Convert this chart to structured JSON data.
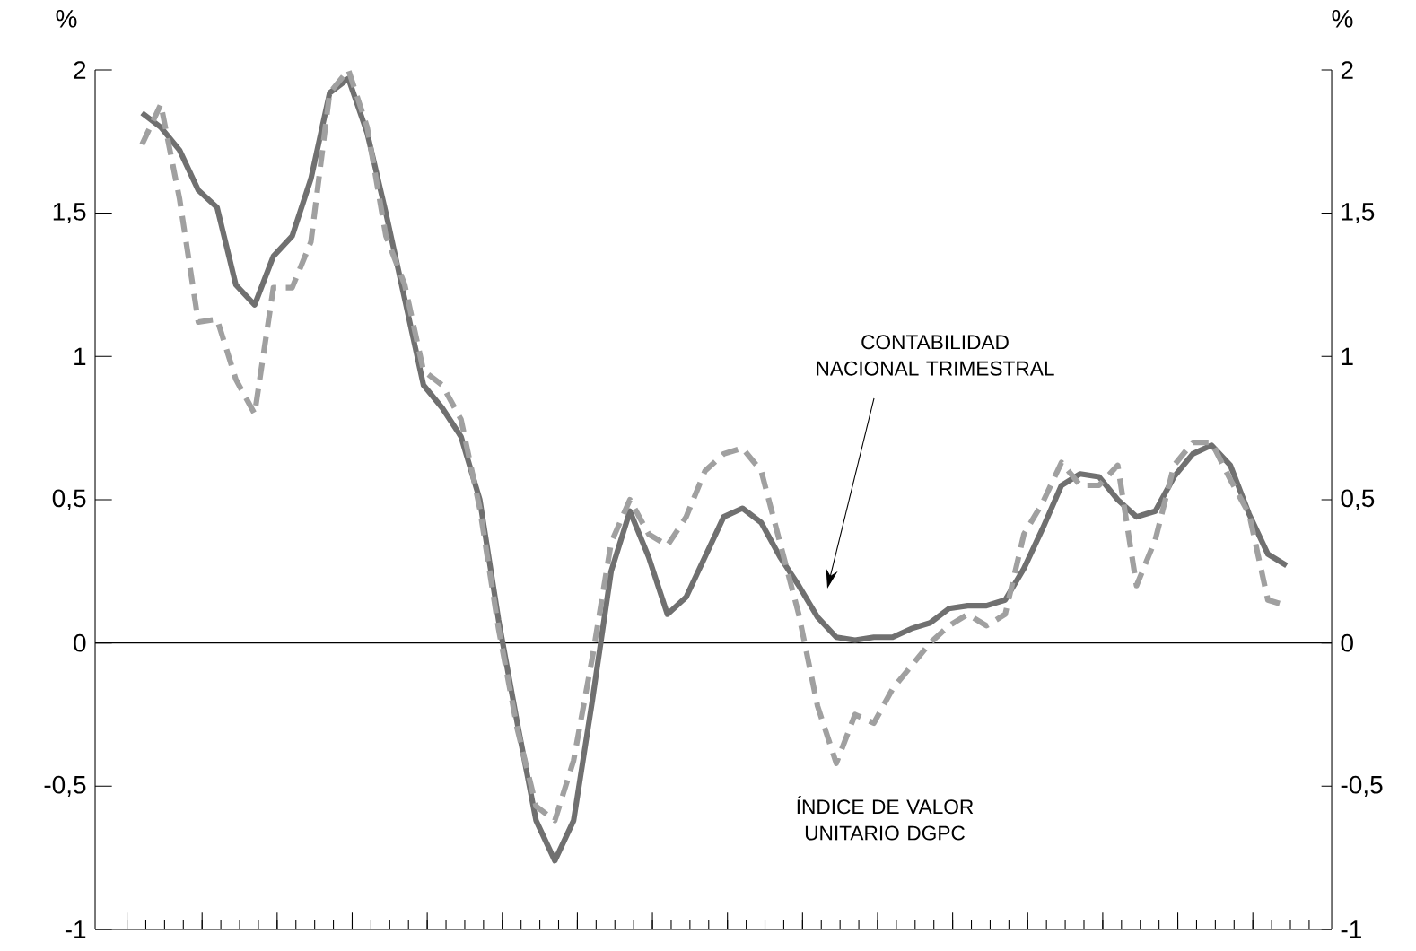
{
  "chart_data": {
    "type": "line",
    "categories": [
      null,
      null,
      null,
      null,
      null,
      null,
      null,
      null,
      null,
      null,
      null,
      null,
      null,
      null,
      null,
      null,
      null,
      null,
      null,
      null,
      null,
      null,
      null,
      null,
      null,
      null,
      null,
      null,
      null,
      null,
      null,
      null,
      null,
      null,
      null,
      null,
      null,
      null,
      null,
      null,
      null,
      null,
      null,
      null,
      null,
      null,
      null,
      null,
      null,
      null,
      null,
      null,
      null,
      null,
      null,
      null,
      null,
      null,
      null,
      null,
      null,
      null
    ],
    "series": [
      {
        "color": "#707070",
        "line_style": "solid",
        "values": [
          1.85,
          1.8,
          1.72,
          1.58,
          1.52,
          1.25,
          1.18,
          1.35,
          1.42,
          1.62,
          1.92,
          1.97,
          1.78,
          1.5,
          1.2,
          0.9,
          0.82,
          0.72,
          0.5,
          0.08,
          -0.28,
          -0.62,
          -0.76,
          -0.62,
          -0.2,
          0.25,
          0.46,
          0.3,
          0.1,
          0.16,
          0.3,
          0.44,
          0.47,
          0.42,
          0.3,
          0.2,
          0.09,
          0.02,
          0.01,
          0.02,
          0.02,
          0.05,
          0.07,
          0.12,
          0.13,
          0.13,
          0.15,
          0.26,
          0.4,
          0.55,
          0.59,
          0.58,
          0.5,
          0.44,
          0.46,
          0.58,
          0.66,
          0.69,
          0.62,
          0.45,
          0.31,
          0.27
        ]
      },
      {
        "color": "#a0a0a0",
        "line_style": "dashed",
        "values": [
          1.74,
          1.88,
          1.55,
          1.12,
          1.13,
          0.92,
          0.8,
          1.24,
          1.24,
          1.4,
          1.92,
          2.0,
          1.8,
          1.42,
          1.25,
          0.95,
          0.9,
          0.78,
          0.47,
          0.05,
          -0.3,
          -0.57,
          -0.62,
          -0.41,
          -0.05,
          0.35,
          0.5,
          0.38,
          0.34,
          0.44,
          0.6,
          0.66,
          0.68,
          0.6,
          0.35,
          0.1,
          -0.22,
          -0.42,
          -0.25,
          -0.28,
          -0.16,
          -0.08,
          0.0,
          0.06,
          0.1,
          0.06,
          0.1,
          0.38,
          0.49,
          0.63,
          0.55,
          0.55,
          0.62,
          0.2,
          0.36,
          0.62,
          0.7,
          0.7,
          0.57,
          0.45,
          0.15,
          0.13
        ]
      }
    ],
    "annotations": [
      "CONTABILIDAD NACIONAL TRIMESTRAL",
      "ÍNDICE DE VALOR UNITARIO DGPC"
    ],
    "ylabel": "%",
    "y2label": "%",
    "ylim": [
      -1,
      2
    ],
    "yticks": [
      -1,
      {
        "value": -0.5,
        "label": "-0,5"
      },
      0,
      {
        "value": 0.5,
        "label": "0,5"
      },
      1,
      {
        "value": 1.5,
        "label": "1,5"
      },
      2
    ],
    "y2lim": [
      -1,
      2
    ],
    "y2ticks": [
      -1,
      {
        "value": -0.5,
        "label": "-0,5"
      },
      0,
      {
        "value": 0.5,
        "label": "0,5"
      },
      1,
      {
        "value": 1.5,
        "label": "1,5"
      },
      2
    ],
    "ref_lines": [
      {
        "axis": "y",
        "value": 0,
        "color": "#000000"
      }
    ],
    "tick_labels": "y"
  }
}
